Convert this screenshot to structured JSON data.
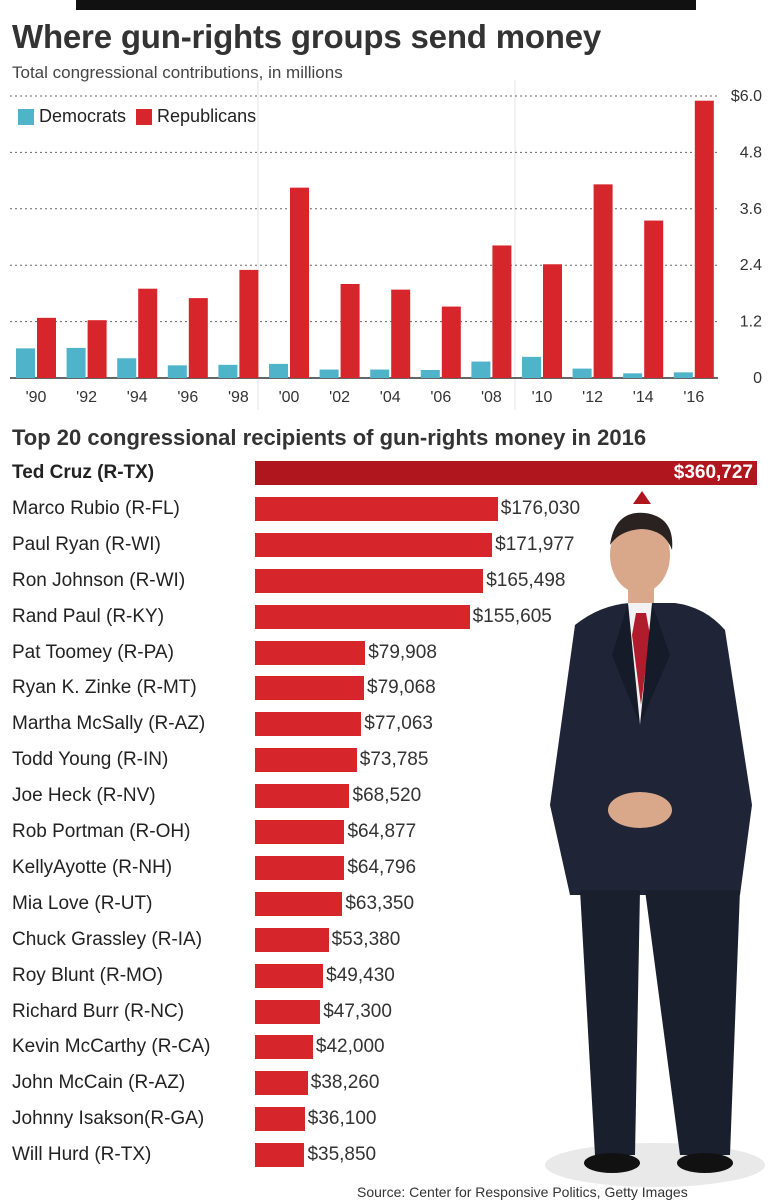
{
  "title": "Where gun-rights groups send money",
  "subtitle": "Total congressional contributions, in millions",
  "legend": {
    "dem_label": "Democrats",
    "rep_label": "Republicans",
    "dem_color": "#4fb3c9",
    "rep_color": "#d7252c"
  },
  "section_title": "Top 20 congressional recipients of gun-rights money in 2016",
  "source": "Source: Center for Responsive Politics, Getty Images",
  "chart_data": [
    {
      "type": "bar",
      "title": "Where gun-rights groups send money",
      "subtitle": "Total congressional contributions, in millions",
      "categories": [
        "'90",
        "'92",
        "'94",
        "'96",
        "'98",
        "'00",
        "'02",
        "'04",
        "'06",
        "'08",
        "'10",
        "'12",
        "'14",
        "'16"
      ],
      "series": [
        {
          "name": "Democrats",
          "values": [
            0.63,
            0.64,
            0.42,
            0.27,
            0.28,
            0.3,
            0.18,
            0.18,
            0.17,
            0.35,
            0.45,
            0.2,
            0.1,
            0.12
          ]
        },
        {
          "name": "Republicans",
          "values": [
            1.28,
            1.23,
            1.9,
            1.7,
            2.3,
            4.05,
            2.0,
            1.88,
            1.52,
            2.82,
            2.42,
            4.12,
            3.35,
            5.9
          ]
        }
      ],
      "yticks": [
        "0",
        "1.2",
        "2.4",
        "3.6",
        "4.8",
        "$6.0"
      ],
      "ylim": [
        0,
        6.0
      ],
      "grid": true,
      "legend": "top-left",
      "y_axis_side": "right"
    },
    {
      "type": "bar",
      "orientation": "horizontal",
      "title": "Top 20 congressional recipients of gun-rights money in 2016",
      "categories": [
        "Ted Cruz (R-TX)",
        "Marco Rubio (R-FL)",
        "Paul Ryan (R-WI)",
        "Ron Johnson (R-WI)",
        "Rand Paul (R-KY)",
        "Pat Toomey (R-PA)",
        "Ryan K. Zinke (R-MT)",
        "Martha McSally (R-AZ)",
        "Todd Young (R-IN)",
        "Joe Heck (R-NV)",
        "Rob Portman (R-OH)",
        "KellyAyotte (R-NH)",
        "Mia Love (R-UT)",
        "Chuck Grassley (R-IA)",
        "Roy Blunt (R-MO)",
        "Richard Burr (R-NC)",
        "Kevin McCarthy (R-CA)",
        "John McCain (R-AZ)",
        "Johnny  Isakson(R-GA)",
        "Will Hurd (R-TX)"
      ],
      "values": [
        360727,
        176030,
        171977,
        165498,
        155605,
        79908,
        79068,
        77063,
        73785,
        68520,
        64877,
        64796,
        63350,
        53380,
        49430,
        47300,
        42000,
        38260,
        36100,
        35850
      ],
      "value_labels": [
        "$360,727",
        "$176,030",
        "$171,977",
        "$165,498",
        "$155,605",
        "$79,908",
        "$79,068",
        "$77,063",
        "$73,785",
        "$68,520",
        "$64,877",
        "$64,796",
        "$63,350",
        "$53,380",
        "$49,430",
        "$47,300",
        "$42,000",
        "$38,260",
        "$36,100",
        "$35,850"
      ],
      "bar_color": "#d7252c",
      "highlight_color": "#b0161d"
    }
  ]
}
